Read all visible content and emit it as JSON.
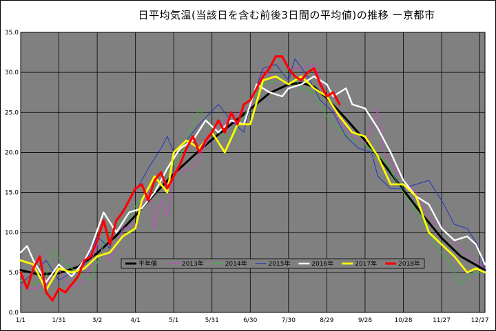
{
  "chart_data": {
    "type": "line",
    "title": "日平均気温(当該日を含む前後3日間の平均値)の推移 ー京都市",
    "xlabel": "",
    "ylabel": "",
    "ylim": [
      0,
      35
    ],
    "yticks": [
      "0.0",
      "5.0",
      "10.0",
      "15.0",
      "20.0",
      "25.0",
      "30.0",
      "35.0"
    ],
    "xticks": [
      {
        "label": "1/1",
        "day": 0
      },
      {
        "label": "1/31",
        "day": 30
      },
      {
        "label": "3/2",
        "day": 60
      },
      {
        "label": "4/1",
        "day": 90
      },
      {
        "label": "5/1",
        "day": 120
      },
      {
        "label": "5/31",
        "day": 150
      },
      {
        "label": "6/30",
        "day": 180
      },
      {
        "label": "7/30",
        "day": 210
      },
      {
        "label": "8/29",
        "day": 240
      },
      {
        "label": "9/28",
        "day": 270
      },
      {
        "label": "10/28",
        "day": 300
      },
      {
        "label": "11/27",
        "day": 330
      },
      {
        "label": "12/27",
        "day": 360
      }
    ],
    "grid": true,
    "legend_position": "bottom-left",
    "series": [
      {
        "name": "平年値",
        "color": "#000000",
        "width": 3,
        "points": [
          [
            0,
            5.3
          ],
          [
            15,
            4.7
          ],
          [
            30,
            4.9
          ],
          [
            45,
            5.7
          ],
          [
            60,
            7.4
          ],
          [
            75,
            9.6
          ],
          [
            90,
            12.1
          ],
          [
            105,
            14.8
          ],
          [
            120,
            17.3
          ],
          [
            135,
            19.5
          ],
          [
            150,
            21.6
          ],
          [
            165,
            23.5
          ],
          [
            180,
            25.4
          ],
          [
            195,
            27.4
          ],
          [
            210,
            28.5
          ],
          [
            220,
            28.7
          ],
          [
            230,
            28.2
          ],
          [
            240,
            26.8
          ],
          [
            255,
            24.2
          ],
          [
            270,
            21.5
          ],
          [
            285,
            18.5
          ],
          [
            300,
            15.3
          ],
          [
            315,
            12.2
          ],
          [
            330,
            9.3
          ],
          [
            345,
            7.0
          ],
          [
            364,
            5.3
          ]
        ]
      },
      {
        "name": "2013年",
        "color": "#cc44cc",
        "width": 1,
        "points": [
          [
            0,
            3.5
          ],
          [
            10,
            2.8
          ],
          [
            20,
            3.5
          ],
          [
            30,
            5.2
          ],
          [
            40,
            3.0
          ],
          [
            50,
            4.0
          ],
          [
            60,
            8.5
          ],
          [
            70,
            6.5
          ],
          [
            80,
            10.5
          ],
          [
            90,
            11.0
          ],
          [
            100,
            15.5
          ],
          [
            105,
            10.5
          ],
          [
            110,
            14.0
          ],
          [
            115,
            12.0
          ],
          [
            120,
            17.5
          ],
          [
            135,
            18.0
          ],
          [
            150,
            22.5
          ],
          [
            165,
            24.5
          ],
          [
            180,
            25.5
          ],
          [
            190,
            30.5
          ],
          [
            200,
            29.0
          ],
          [
            210,
            30.5
          ],
          [
            220,
            30.5
          ],
          [
            230,
            31.0
          ],
          [
            240,
            27.0
          ],
          [
            250,
            24.0
          ],
          [
            260,
            22.0
          ],
          [
            270,
            21.0
          ],
          [
            280,
            25.5
          ],
          [
            285,
            20.0
          ],
          [
            300,
            16.5
          ],
          [
            310,
            15.0
          ],
          [
            320,
            12.0
          ],
          [
            330,
            10.5
          ],
          [
            345,
            8.0
          ],
          [
            364,
            5.5
          ]
        ]
      },
      {
        "name": "2014年",
        "color": "#33bb33",
        "width": 1,
        "points": [
          [
            0,
            4.0
          ],
          [
            10,
            3.5
          ],
          [
            20,
            4.5
          ],
          [
            25,
            7.8
          ],
          [
            35,
            6.0
          ],
          [
            45,
            5.0
          ],
          [
            55,
            4.0
          ],
          [
            65,
            8.5
          ],
          [
            75,
            11.0
          ],
          [
            85,
            12.0
          ],
          [
            95,
            14.5
          ],
          [
            105,
            15.5
          ],
          [
            115,
            17.5
          ],
          [
            125,
            19.5
          ],
          [
            140,
            25.5
          ],
          [
            150,
            23.0
          ],
          [
            165,
            21.5
          ],
          [
            180,
            26.0
          ],
          [
            190,
            28.5
          ],
          [
            200,
            29.0
          ],
          [
            210,
            30.5
          ],
          [
            220,
            28.0
          ],
          [
            230,
            27.5
          ],
          [
            240,
            24.5
          ],
          [
            255,
            22.0
          ],
          [
            270,
            21.0
          ],
          [
            285,
            19.0
          ],
          [
            300,
            15.0
          ],
          [
            315,
            11.5
          ],
          [
            325,
            8.5
          ],
          [
            335,
            6.5
          ],
          [
            345,
            3.5
          ],
          [
            355,
            5.0
          ],
          [
            364,
            5.0
          ]
        ]
      },
      {
        "name": "2015年",
        "color": "#2233bb",
        "width": 1,
        "points": [
          [
            0,
            3.5
          ],
          [
            10,
            5.0
          ],
          [
            20,
            6.5
          ],
          [
            30,
            4.0
          ],
          [
            40,
            5.0
          ],
          [
            50,
            6.0
          ],
          [
            60,
            9.5
          ],
          [
            70,
            8.0
          ],
          [
            75,
            11.5
          ],
          [
            85,
            14.0
          ],
          [
            95,
            16.5
          ],
          [
            100,
            18.0
          ],
          [
            110,
            20.5
          ],
          [
            115,
            22.0
          ],
          [
            120,
            20.0
          ],
          [
            130,
            21.5
          ],
          [
            140,
            23.5
          ],
          [
            155,
            26.0
          ],
          [
            165,
            24.0
          ],
          [
            175,
            22.5
          ],
          [
            180,
            26.0
          ],
          [
            190,
            30.5
          ],
          [
            200,
            31.0
          ],
          [
            210,
            29.0
          ],
          [
            215,
            31.7
          ],
          [
            225,
            29.5
          ],
          [
            235,
            26.5
          ],
          [
            245,
            25.0
          ],
          [
            255,
            22.0
          ],
          [
            265,
            20.5
          ],
          [
            275,
            20.0
          ],
          [
            280,
            17.0
          ],
          [
            290,
            15.5
          ],
          [
            300,
            15.5
          ],
          [
            310,
            16.0
          ],
          [
            320,
            16.5
          ],
          [
            330,
            14.0
          ],
          [
            340,
            11.0
          ],
          [
            350,
            10.5
          ],
          [
            358,
            8.5
          ],
          [
            364,
            5.0
          ]
        ]
      },
      {
        "name": "2016年",
        "color": "#ffffff",
        "width": 2.4,
        "points": [
          [
            0,
            7.5
          ],
          [
            5,
            8.3
          ],
          [
            10,
            6.5
          ],
          [
            20,
            3.8
          ],
          [
            30,
            6.0
          ],
          [
            40,
            4.5
          ],
          [
            50,
            6.5
          ],
          [
            55,
            8.0
          ],
          [
            65,
            12.5
          ],
          [
            75,
            10.0
          ],
          [
            85,
            12.5
          ],
          [
            95,
            13.0
          ],
          [
            105,
            15.0
          ],
          [
            115,
            18.0
          ],
          [
            125,
            20.5
          ],
          [
            135,
            21.5
          ],
          [
            145,
            24.0
          ],
          [
            155,
            22.5
          ],
          [
            165,
            24.0
          ],
          [
            175,
            23.5
          ],
          [
            185,
            28.5
          ],
          [
            195,
            27.5
          ],
          [
            205,
            27.0
          ],
          [
            210,
            28.0
          ],
          [
            220,
            28.5
          ],
          [
            230,
            29.5
          ],
          [
            240,
            28.5
          ],
          [
            245,
            27.0
          ],
          [
            255,
            28.0
          ],
          [
            260,
            26.0
          ],
          [
            270,
            25.5
          ],
          [
            280,
            23.0
          ],
          [
            290,
            20.0
          ],
          [
            300,
            16.5
          ],
          [
            310,
            14.5
          ],
          [
            320,
            13.5
          ],
          [
            330,
            10.5
          ],
          [
            340,
            9.0
          ],
          [
            350,
            9.5
          ],
          [
            357,
            8.5
          ],
          [
            364,
            6.0
          ]
        ]
      },
      {
        "name": "2017年",
        "color": "#ffff00",
        "width": 2.8,
        "points": [
          [
            0,
            6.5
          ],
          [
            10,
            6.0
          ],
          [
            20,
            2.8
          ],
          [
            30,
            5.5
          ],
          [
            40,
            5.0
          ],
          [
            50,
            5.5
          ],
          [
            60,
            7.0
          ],
          [
            70,
            7.5
          ],
          [
            80,
            9.5
          ],
          [
            90,
            10.5
          ],
          [
            95,
            14.0
          ],
          [
            105,
            17.0
          ],
          [
            115,
            15.0
          ],
          [
            120,
            20.0
          ],
          [
            130,
            21.5
          ],
          [
            140,
            20.5
          ],
          [
            150,
            22.5
          ],
          [
            160,
            20.0
          ],
          [
            170,
            23.5
          ],
          [
            180,
            23.5
          ],
          [
            190,
            29.0
          ],
          [
            200,
            29.5
          ],
          [
            210,
            28.5
          ],
          [
            220,
            29.5
          ],
          [
            230,
            28.0
          ],
          [
            240,
            27.0
          ],
          [
            250,
            24.5
          ],
          [
            260,
            22.5
          ],
          [
            270,
            22.0
          ],
          [
            280,
            19.5
          ],
          [
            290,
            16.0
          ],
          [
            300,
            16.0
          ],
          [
            310,
            14.5
          ],
          [
            320,
            10.0
          ],
          [
            330,
            8.5
          ],
          [
            340,
            7.0
          ],
          [
            350,
            5.0
          ],
          [
            357,
            5.5
          ],
          [
            364,
            5.0
          ]
        ]
      },
      {
        "name": "2018年",
        "color": "#ff0000",
        "width": 3.2,
        "points": [
          [
            0,
            5.0
          ],
          [
            5,
            3.0
          ],
          [
            10,
            5.5
          ],
          [
            15,
            7.0
          ],
          [
            20,
            2.5
          ],
          [
            25,
            1.5
          ],
          [
            30,
            3.0
          ],
          [
            35,
            2.5
          ],
          [
            40,
            3.5
          ],
          [
            45,
            4.5
          ],
          [
            50,
            6.5
          ],
          [
            55,
            7.0
          ],
          [
            60,
            9.0
          ],
          [
            65,
            11.5
          ],
          [
            70,
            8.5
          ],
          [
            75,
            11.5
          ],
          [
            80,
            12.5
          ],
          [
            85,
            14.0
          ],
          [
            90,
            15.5
          ],
          [
            95,
            16.0
          ],
          [
            100,
            14.0
          ],
          [
            105,
            16.5
          ],
          [
            110,
            17.5
          ],
          [
            115,
            15.5
          ],
          [
            120,
            17.0
          ],
          [
            125,
            18.5
          ],
          [
            130,
            20.5
          ],
          [
            135,
            22.0
          ],
          [
            140,
            20.0
          ],
          [
            145,
            21.5
          ],
          [
            150,
            22.5
          ],
          [
            155,
            24.0
          ],
          [
            160,
            22.5
          ],
          [
            165,
            25.0
          ],
          [
            170,
            23.5
          ],
          [
            175,
            26.0
          ],
          [
            180,
            26.5
          ],
          [
            185,
            28.0
          ],
          [
            190,
            29.5
          ],
          [
            195,
            30.5
          ],
          [
            200,
            32.0
          ],
          [
            205,
            32.0
          ],
          [
            210,
            30.5
          ],
          [
            215,
            29.5
          ],
          [
            220,
            29.0
          ],
          [
            225,
            30.0
          ],
          [
            230,
            30.5
          ],
          [
            235,
            28.5
          ],
          [
            240,
            27.0
          ],
          [
            245,
            27.5
          ],
          [
            250,
            26.0
          ]
        ]
      }
    ]
  }
}
